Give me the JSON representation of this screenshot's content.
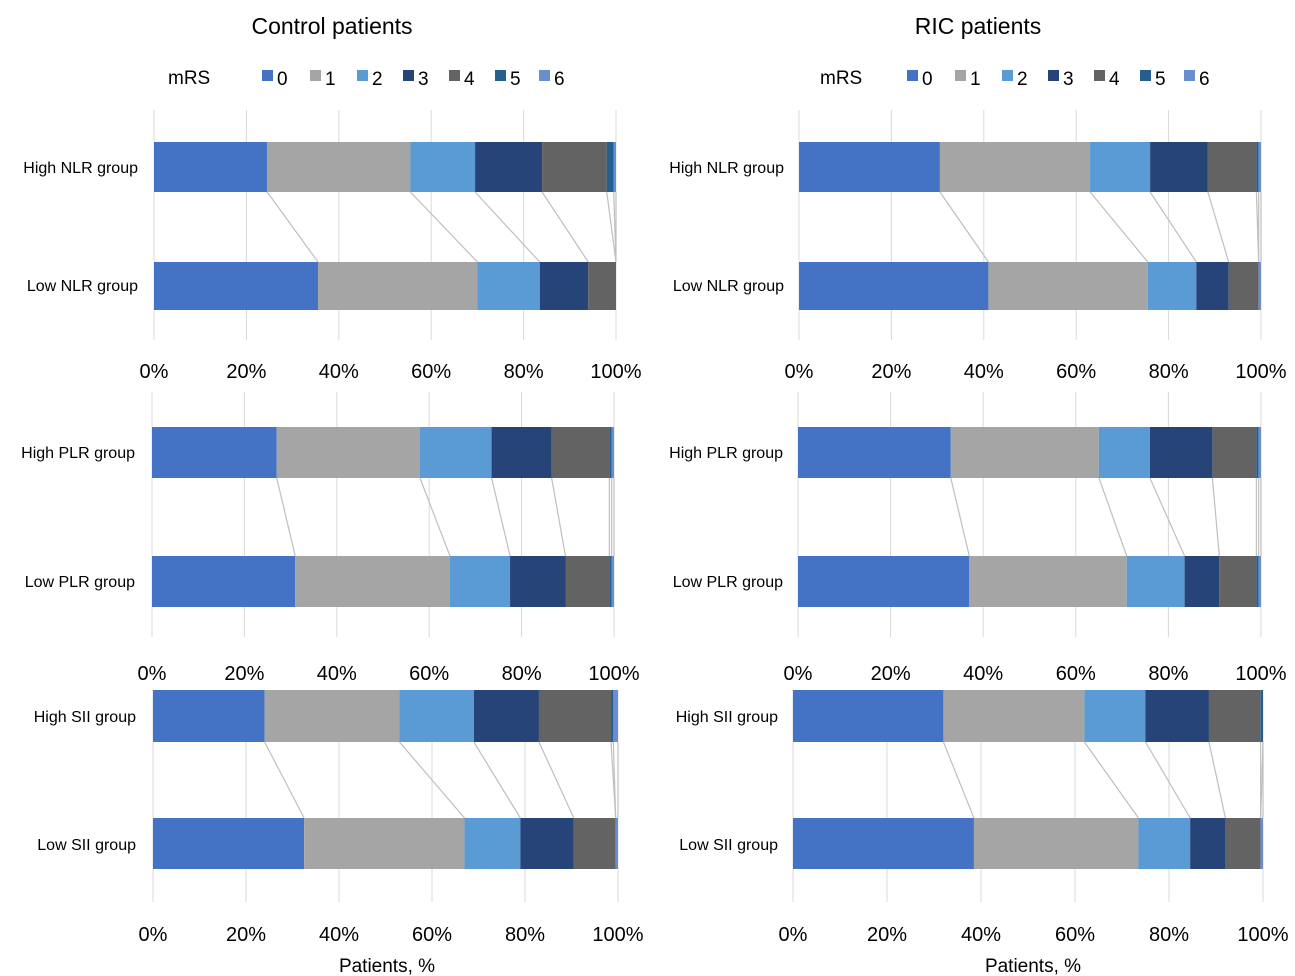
{
  "chart_data": {
    "type": "bar",
    "stacked": "percent",
    "orientation": "horizontal",
    "legend_title": "mRS",
    "legend_position": "top",
    "series": [
      {
        "name": "0",
        "color": "#4472C4"
      },
      {
        "name": "1",
        "color": "#A5A5A5"
      },
      {
        "name": "2",
        "color": "#5B9BD5"
      },
      {
        "name": "3",
        "color": "#264478"
      },
      {
        "name": "4",
        "color": "#636363"
      },
      {
        "name": "5",
        "color": "#255E91"
      },
      {
        "name": "6",
        "color": "#698ED0"
      }
    ],
    "x_ticks": [
      "0%",
      "20%",
      "40%",
      "60%",
      "80%",
      "100%"
    ],
    "xlim": [
      0,
      100
    ],
    "xlabel": "Patients, %",
    "grid": true,
    "columns": [
      {
        "title": "Control patients",
        "panels": [
          {
            "categories": [
              "High NLR group",
              "Low NLR group"
            ],
            "values": [
              [
                24.5,
                31,
                14,
                14.5,
                14,
                1.5,
                0.5
              ],
              [
                35.5,
                34.5,
                13.5,
                10.5,
                6,
                0,
                0
              ]
            ]
          },
          {
            "categories": [
              "High PLR group",
              "Low PLR group"
            ],
            "values": [
              [
                27,
                31,
                15.5,
                13,
                12.5,
                0.5,
                0.5
              ],
              [
                31,
                33.5,
                13,
                12,
                9.5,
                0.5,
                0.5
              ]
            ]
          },
          {
            "categories": [
              "High SII group",
              "Low SII group"
            ],
            "values": [
              [
                24,
                29,
                16,
                14,
                15.5,
                0.5,
                1
              ],
              [
                32.5,
                34.5,
                12,
                11.5,
                9,
                0,
                0.5
              ]
            ]
          }
        ]
      },
      {
        "title": "RIC patients",
        "panels": [
          {
            "categories": [
              "High NLR group",
              "Low NLR group"
            ],
            "values": [
              [
                30.5,
                32.5,
                13,
                12.5,
                10.5,
                0.5,
                0.5
              ],
              [
                41,
                34.5,
                10.5,
                7,
                6.5,
                0,
                0.5
              ]
            ]
          },
          {
            "categories": [
              "High PLR group",
              "Low PLR group"
            ],
            "values": [
              [
                33,
                32,
                11,
                13.5,
                9.5,
                0.5,
                0.5
              ],
              [
                37,
                34,
                12.5,
                7.5,
                8,
                0.5,
                0.5
              ]
            ]
          },
          {
            "categories": [
              "High SII group",
              "Low SII group"
            ],
            "values": [
              [
                32,
                30,
                13,
                13.5,
                11,
                0.5,
                0
              ],
              [
                38.5,
                35,
                11,
                7.5,
                7.5,
                0,
                0.5
              ]
            ]
          }
        ]
      }
    ]
  }
}
